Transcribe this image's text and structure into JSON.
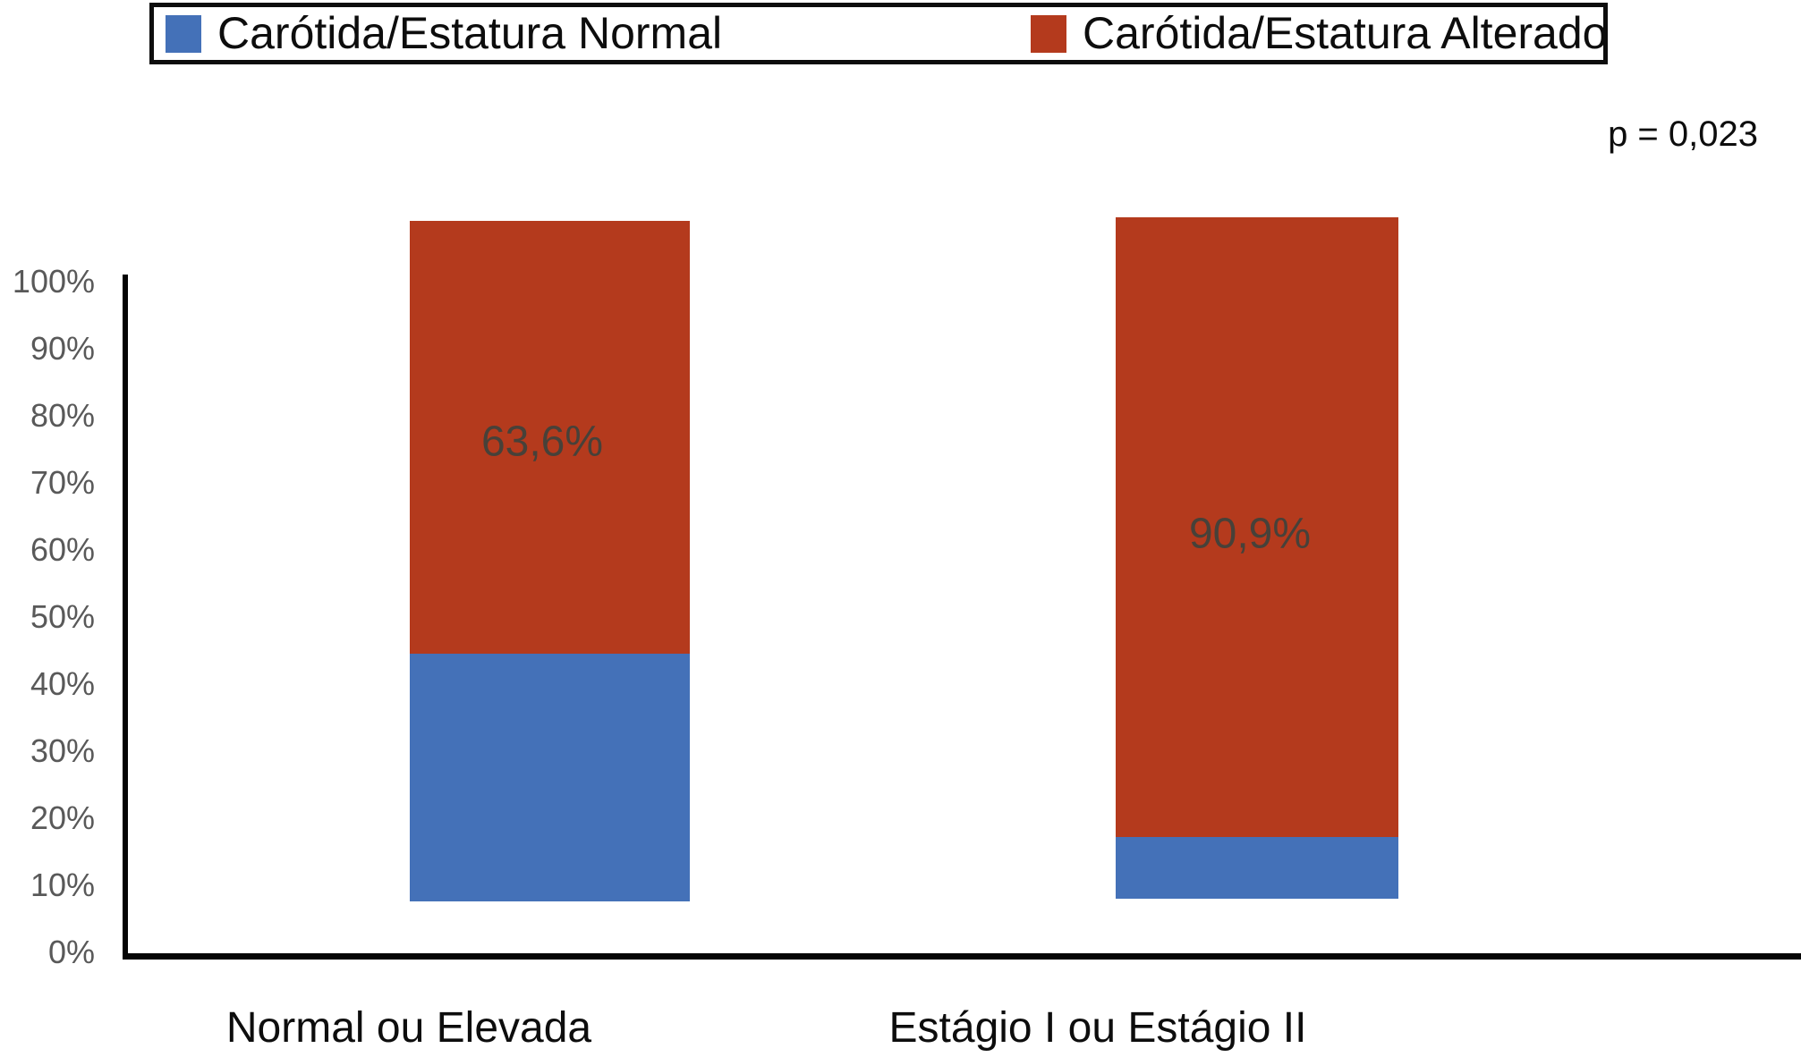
{
  "chart_data": {
    "type": "bar",
    "stacked": true,
    "orientation": "vertical",
    "categories": [
      "Normal ou Elevada",
      "Estágio I ou Estágio II"
    ],
    "series": [
      {
        "name": "Carótida/Estatura Normal",
        "color": "#4471B8",
        "values": [
          36.4,
          9.1
        ]
      },
      {
        "name": "Carótida/Estatura Alterado",
        "color": "#B43A1D",
        "values": [
          63.6,
          90.9
        ]
      }
    ],
    "bar_labels": [
      "63,6%",
      "90,9%"
    ],
    "y_ticks": [
      "100%",
      "90%",
      "80%",
      "70%",
      "60%",
      "50%",
      "40%",
      "30%",
      "20%",
      "10%",
      "0%"
    ],
    "ylim": [
      0,
      100
    ],
    "xlabel": "",
    "ylabel": "",
    "grid": false,
    "legend_position": "top",
    "annotation": "p = 0,023"
  },
  "colors": {
    "blue": "#4471B8",
    "red": "#B43A1D",
    "axis": "#050505",
    "tick_text": "#595959",
    "bar_label_text": "#474139",
    "legend_border": "#0d0d0d",
    "background": "#ffffff"
  }
}
